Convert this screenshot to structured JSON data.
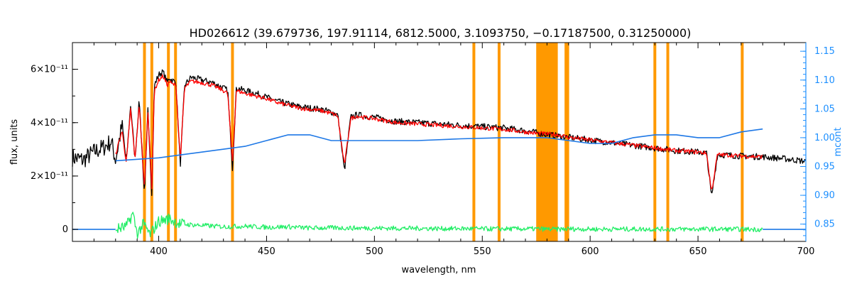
{
  "chart_data": {
    "type": "line",
    "title": "HD026612    (39.679736, 197.91114, 6812.5000, 3.1093750, −0.17187500, 0.31250000)",
    "xlabel": "wavelength, nm",
    "ylabel": "flux, units",
    "y2label": "mcont",
    "xlim": [
      360,
      700
    ],
    "ylim": [
      -4.5e-12,
      7e-11
    ],
    "y2lim": [
      0.82,
      1.165
    ],
    "x_ticks": [
      400,
      450,
      500,
      550,
      600,
      650,
      700
    ],
    "y_ticks": [
      {
        "value": 0,
        "label": "0"
      },
      {
        "value": 2e-11,
        "label": "2×10⁻¹¹"
      },
      {
        "value": 4e-11,
        "label": "4×10⁻¹¹"
      },
      {
        "value": 6e-11,
        "label": "6×10⁻¹¹"
      }
    ],
    "y2_ticks": [
      "0.85",
      "0.90",
      "0.95",
      "1.00",
      "1.05",
      "1.10",
      "1.15"
    ],
    "masked_lines_nm": [
      393.4,
      396.8,
      404.5,
      407.8,
      434.2,
      546.1,
      557.8,
      588.8,
      589.6,
      630.0,
      636.0,
      670.5
    ],
    "masked_band_nm": [
      575,
      585
    ],
    "series": [
      {
        "role": "observed",
        "color": "#000000",
        "x": [
          360,
          365,
          370,
          375,
          378,
          380,
          383,
          385,
          387,
          389,
          391,
          393.4,
          395,
          396.8,
          398,
          400,
          402,
          404,
          405,
          406,
          408,
          410,
          412,
          415,
          420,
          425,
          430,
          432,
          434.2,
          436,
          440,
          445,
          450,
          455,
          460,
          465,
          470,
          475,
          480,
          483,
          486.1,
          489,
          492,
          495,
          500,
          510,
          520,
          530,
          540,
          550,
          560,
          570,
          580,
          590,
          600,
          610,
          620,
          630,
          640,
          650,
          654,
          656.3,
          659,
          665,
          670,
          680,
          690,
          700
        ],
        "y": [
          2.7e-11,
          2.6e-11,
          2.9e-11,
          3.1e-11,
          3.3e-11,
          2.6e-11,
          3.9e-11,
          2.5e-11,
          4.7e-11,
          2.6e-11,
          4.9e-11,
          1.2e-11,
          4.5e-11,
          1.3e-11,
          5.4e-11,
          5.8e-11,
          5.9e-11,
          5.5e-11,
          5.7e-11,
          5.6e-11,
          5.5e-11,
          2.4e-11,
          5.4e-11,
          5.7e-11,
          5.6e-11,
          5.5e-11,
          5.3e-11,
          5.2e-11,
          2.3e-11,
          5.3e-11,
          5.2e-11,
          5.1e-11,
          4.95e-11,
          4.8e-11,
          4.7e-11,
          4.6e-11,
          4.55e-11,
          4.5e-11,
          4.4e-11,
          4.3e-11,
          2.2e-11,
          4.2e-11,
          4.3e-11,
          4.25e-11,
          4.2e-11,
          4.05e-11,
          4e-11,
          3.95e-11,
          3.9e-11,
          3.85e-11,
          3.8e-11,
          3.7e-11,
          3.55e-11,
          3.45e-11,
          3.35e-11,
          3.25e-11,
          3.15e-11,
          3.05e-11,
          2.95e-11,
          2.9e-11,
          2.85e-11,
          1.2e-11,
          2.8e-11,
          2.78e-11,
          2.75e-11,
          2.72e-11,
          2.65e-11,
          2.55e-11
        ]
      },
      {
        "role": "model",
        "color": "#ff0000",
        "x": [
          380,
          383,
          385,
          387,
          389,
          391,
          393.4,
          395,
          396.8,
          398,
          400,
          402,
          404,
          405,
          406,
          408,
          410,
          412,
          415,
          420,
          425,
          430,
          432,
          434.2,
          436,
          440,
          445,
          450,
          455,
          460,
          465,
          470,
          475,
          480,
          483,
          486.1,
          489,
          492,
          495,
          500,
          510,
          520,
          530,
          540,
          550,
          560,
          570,
          575,
          585,
          590,
          600,
          610,
          620,
          630,
          640,
          650,
          654,
          656.3,
          659,
          665,
          670,
          680
        ],
        "y": [
          2.8e-11,
          3.7e-11,
          2.5e-11,
          4.5e-11,
          2.6e-11,
          4.7e-11,
          1.5e-11,
          4.4e-11,
          1.6e-11,
          5.2e-11,
          5.6e-11,
          5.75e-11,
          5.4e-11,
          5.55e-11,
          5.45e-11,
          5.4e-11,
          2.6e-11,
          5.3e-11,
          5.55e-11,
          5.5e-11,
          5.4e-11,
          5.2e-11,
          5.1e-11,
          2.5e-11,
          5.2e-11,
          5.1e-11,
          5e-11,
          4.9e-11,
          4.75e-11,
          4.65e-11,
          4.55e-11,
          4.5e-11,
          4.45e-11,
          4.35e-11,
          4.25e-11,
          2.4e-11,
          4.15e-11,
          4.25e-11,
          4.2e-11,
          4.15e-11,
          4e-11,
          3.95e-11,
          3.9e-11,
          3.85e-11,
          3.8e-11,
          3.75e-11,
          3.65e-11,
          3.6e-11,
          3.55e-11,
          3.45e-11,
          3.35e-11,
          3.25e-11,
          3.15e-11,
          3.05e-11,
          2.95e-11,
          2.9e-11,
          2.85e-11,
          1.4e-11,
          2.8e-11,
          2.78e-11,
          2.75e-11,
          2.72e-11
        ]
      },
      {
        "role": "residual",
        "color": "#22ee66",
        "x": [
          380,
          385,
          388,
          390,
          393,
          396,
          400,
          405,
          410,
          420,
          430,
          440,
          450,
          460,
          470,
          480,
          490,
          500,
          510,
          520,
          530,
          540,
          550,
          560,
          570,
          575,
          585,
          590,
          600,
          620,
          640,
          660,
          680
        ],
        "y": [
          0.0,
          1e-12,
          6e-12,
          -1.5e-12,
          2e-12,
          -2e-12,
          3e-12,
          4e-12,
          2e-12,
          1.5e-12,
          1e-12,
          1.2e-12,
          8e-13,
          1e-12,
          5e-13,
          6e-13,
          5e-13,
          5e-13,
          4e-13,
          4e-13,
          3e-13,
          3e-13,
          2e-13,
          2e-13,
          2e-13,
          2e-13,
          0.0,
          2e-13,
          1e-13,
          1e-13,
          1e-13,
          1e-13,
          0.0
        ]
      },
      {
        "role": "mcont",
        "axis": "right",
        "color": "#1e78e6",
        "x": [
          380,
          400,
          420,
          440,
          450,
          460,
          470,
          480,
          500,
          520,
          540,
          560,
          580,
          590,
          600,
          610,
          620,
          630,
          640,
          650,
          660,
          670,
          680
        ],
        "y": [
          0.96,
          0.965,
          0.975,
          0.985,
          0.995,
          1.005,
          1.005,
          0.995,
          0.995,
          0.995,
          0.998,
          1.0,
          1.0,
          0.995,
          0.99,
          0.99,
          1.0,
          1.005,
          1.005,
          1.0,
          1.0,
          1.01,
          1.015
        ]
      }
    ]
  }
}
